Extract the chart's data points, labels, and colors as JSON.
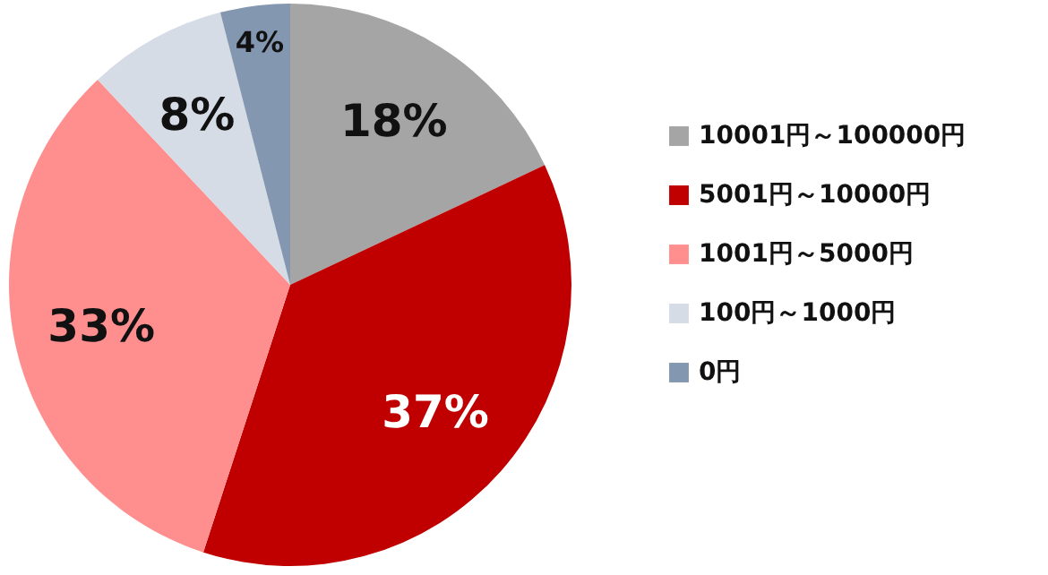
{
  "chart_data": {
    "type": "pie",
    "categories": [
      "10001円～100000円",
      "5001円～10000円",
      "1001円～5000円",
      "100円～1000円",
      "0円"
    ],
    "values": [
      18,
      37,
      33,
      8,
      4
    ],
    "colors": [
      "#a5a5a5",
      "#c00000",
      "#ff8f8f",
      "#d5dce6",
      "#8497b0"
    ],
    "value_labels": [
      "18%",
      "37%",
      "33%",
      "8%",
      "4%"
    ],
    "legend": "right"
  }
}
